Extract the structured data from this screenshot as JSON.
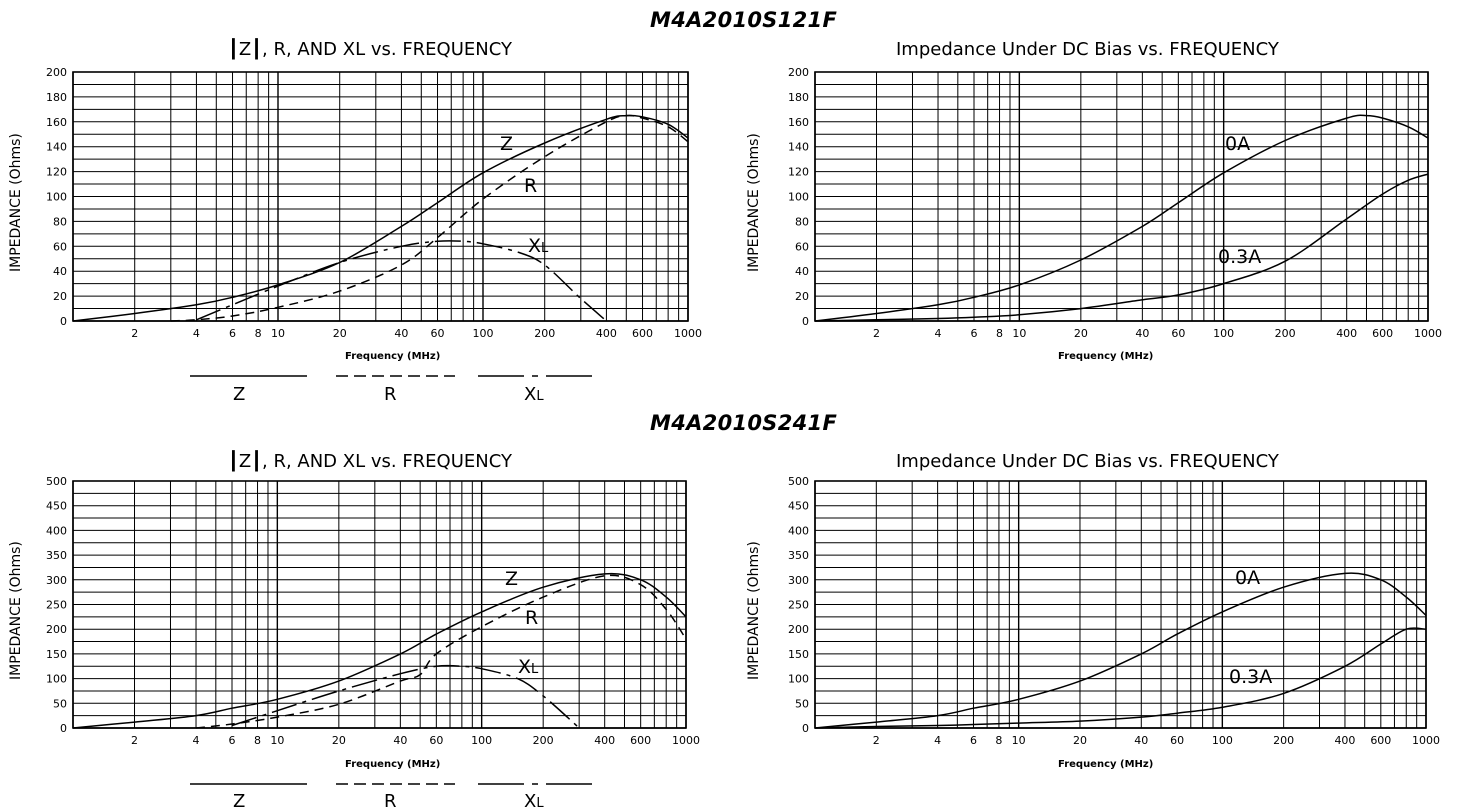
{
  "part_titles": [
    "M4A2010S121F",
    "M4A2010S241F"
  ],
  "legend": {
    "labels": [
      "Z",
      "R",
      "XL"
    ],
    "xl_main": "X",
    "xl_sub": "L"
  },
  "chart_data": [
    {
      "type": "line",
      "title": "┃Z┃, R, AND XL vs. FREQUENCY",
      "xlabel": "Frequency (MHz)",
      "ylabel": "IMPEDANCE (Ohms)",
      "xscale": "log",
      "xlim": [
        1,
        1000
      ],
      "ylim": [
        0,
        200
      ],
      "xticks": [
        2,
        4,
        6,
        8,
        10,
        20,
        40,
        60,
        100,
        200,
        400,
        600,
        1000
      ],
      "yticks": [
        0,
        20,
        40,
        60,
        80,
        100,
        120,
        140,
        160,
        180,
        200
      ],
      "series": [
        {
          "name": "Z",
          "style": "solid",
          "x": [
            1,
            2,
            4,
            6,
            10,
            20,
            40,
            60,
            100,
            200,
            400,
            500,
            600,
            800,
            1000
          ],
          "y": [
            0,
            6,
            13,
            19,
            29,
            47,
            76,
            95,
            119,
            143,
            162,
            165,
            164,
            158,
            147
          ]
        },
        {
          "name": "R",
          "style": "dashed",
          "x": [
            3,
            4,
            6,
            10,
            20,
            40,
            60,
            100,
            200,
            400,
            500,
            600,
            800,
            1000
          ],
          "y": [
            0,
            1,
            4,
            11,
            24,
            45,
            67,
            98,
            132,
            160,
            165,
            163,
            156,
            144
          ]
        },
        {
          "name": "XL",
          "style": "dashdot",
          "x": [
            4,
            6,
            10,
            20,
            40,
            60,
            80,
            100,
            150,
            200,
            300,
            400
          ],
          "y": [
            1,
            13,
            28,
            47,
            60,
            64,
            64,
            62,
            55,
            45,
            18,
            0
          ]
        }
      ],
      "annotations": [
        "Z",
        "R",
        "XL"
      ]
    },
    {
      "type": "line",
      "title": "Impedance Under DC Bias vs. FREQUENCY",
      "xlabel": "Frequency (MHz)",
      "ylabel": "IMPEDANCE (Ohms)",
      "xscale": "log",
      "xlim": [
        1,
        1000
      ],
      "ylim": [
        0,
        200
      ],
      "xticks": [
        2,
        4,
        6,
        8,
        10,
        20,
        40,
        60,
        100,
        200,
        400,
        600,
        1000
      ],
      "yticks": [
        0,
        20,
        40,
        60,
        80,
        100,
        120,
        140,
        160,
        180,
        200
      ],
      "series": [
        {
          "name": "0A",
          "style": "solid",
          "x": [
            1,
            2,
            4,
            6,
            10,
            20,
            40,
            60,
            100,
            200,
            400,
            500,
            600,
            800,
            1000
          ],
          "y": [
            0,
            6,
            13,
            19,
            29,
            49,
            76,
            95,
            119,
            145,
            163,
            165,
            163,
            156,
            147
          ]
        },
        {
          "name": "0.3A",
          "style": "solid",
          "x": [
            1,
            2,
            4,
            6,
            10,
            20,
            40,
            60,
            100,
            200,
            400,
            600,
            800,
            1000
          ],
          "y": [
            0,
            1,
            2,
            3,
            5,
            10,
            17,
            21,
            30,
            48,
            82,
            102,
            113,
            118
          ]
        }
      ],
      "annotations": [
        "0A",
        "0.3A"
      ]
    },
    {
      "type": "line",
      "title": "┃Z┃, R, AND XL vs. FREQUENCY",
      "xlabel": "Frequency (MHz)",
      "ylabel": "IMPEDANCE (Ohms)",
      "xscale": "log",
      "xlim": [
        1,
        1000
      ],
      "ylim": [
        0,
        500
      ],
      "xticks": [
        2,
        4,
        6,
        8,
        10,
        20,
        40,
        60,
        100,
        200,
        400,
        600,
        1000
      ],
      "yticks": [
        0,
        50,
        100,
        150,
        200,
        250,
        300,
        350,
        400,
        450,
        500
      ],
      "series": [
        {
          "name": "Z",
          "style": "solid",
          "x": [
            1,
            2,
            4,
            6,
            10,
            20,
            40,
            60,
            100,
            200,
            400,
            600,
            800,
            1000
          ],
          "y": [
            0,
            12,
            25,
            40,
            58,
            95,
            150,
            190,
            235,
            285,
            312,
            300,
            265,
            225
          ]
        },
        {
          "name": "R",
          "style": "dashed",
          "x": [
            4,
            6,
            10,
            20,
            40,
            50,
            60,
            100,
            200,
            400,
            600,
            800,
            1000
          ],
          "y": [
            0,
            8,
            22,
            48,
            95,
            108,
            150,
            205,
            265,
            308,
            290,
            240,
            180
          ]
        },
        {
          "name": "XL",
          "style": "dashdot",
          "x": [
            6,
            10,
            20,
            40,
            60,
            80,
            100,
            150,
            200,
            300
          ],
          "y": [
            5,
            35,
            75,
            110,
            125,
            125,
            120,
            100,
            65,
            0
          ]
        }
      ],
      "annotations": [
        "Z",
        "R",
        "XL"
      ]
    },
    {
      "type": "line",
      "title": "Impedance Under DC Bias vs. FREQUENCY",
      "xlabel": "Frequency (MHz)",
      "ylabel": "IMPEDANCE (Ohms)",
      "xscale": "log",
      "xlim": [
        1,
        1000
      ],
      "ylim": [
        0,
        500
      ],
      "xticks": [
        2,
        4,
        6,
        8,
        10,
        20,
        40,
        60,
        100,
        200,
        400,
        600,
        1000
      ],
      "yticks": [
        0,
        50,
        100,
        150,
        200,
        250,
        300,
        350,
        400,
        450,
        500
      ],
      "series": [
        {
          "name": "0A",
          "style": "solid",
          "x": [
            1,
            2,
            4,
            6,
            10,
            20,
            40,
            60,
            100,
            200,
            400,
            600,
            800,
            1000
          ],
          "y": [
            0,
            12,
            25,
            40,
            58,
            95,
            150,
            190,
            235,
            285,
            313,
            300,
            265,
            228
          ]
        },
        {
          "name": "0.3A",
          "style": "solid",
          "x": [
            1,
            2,
            4,
            6,
            10,
            20,
            40,
            60,
            100,
            200,
            400,
            600,
            800,
            1000
          ],
          "y": [
            0,
            3,
            5,
            7,
            10,
            14,
            22,
            30,
            42,
            70,
            125,
            170,
            200,
            200
          ]
        }
      ],
      "annotations": [
        "0A",
        "0.3A"
      ]
    }
  ]
}
